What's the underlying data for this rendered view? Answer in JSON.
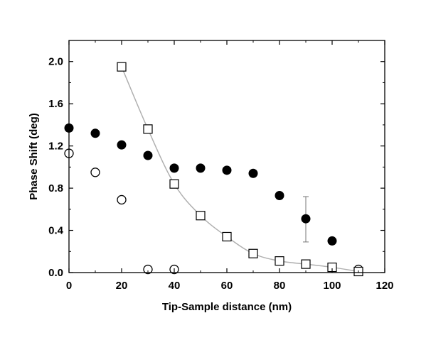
{
  "chart_data": {
    "type": "scatter",
    "title": "",
    "xlabel": "Tip-Sample distance (nm)",
    "ylabel": "Phase Shift (deg)",
    "xlim": [
      0,
      120
    ],
    "ylim": [
      0.0,
      2.2
    ],
    "xticks": [
      0,
      20,
      40,
      60,
      80,
      100,
      120
    ],
    "xtick_labels": [
      "0",
      "20",
      "40",
      "60",
      "80",
      "100",
      "120"
    ],
    "yticks": [
      0.0,
      0.4,
      0.8,
      1.2,
      1.6,
      2.0
    ],
    "ytick_labels": [
      "0.0",
      "0.4",
      "0.8",
      "1.2",
      "1.6",
      "2.0"
    ],
    "grid": false,
    "legend": "none",
    "series": [
      {
        "marker": "filled-circle",
        "color": "#000000",
        "x": [
          0,
          10,
          20,
          30,
          40,
          50,
          60,
          70,
          80,
          90,
          100
        ],
        "y": [
          1.37,
          1.32,
          1.21,
          1.11,
          0.99,
          0.99,
          0.97,
          0.94,
          0.73,
          0.51,
          0.3
        ],
        "error_bars": [
          {
            "x": 90,
            "low": 0.29,
            "high": 0.72
          }
        ]
      },
      {
        "marker": "open-circle",
        "color": "#000000",
        "x": [
          0,
          10,
          20,
          30,
          40,
          110
        ],
        "y": [
          1.13,
          0.95,
          0.69,
          0.03,
          0.03,
          0.03
        ]
      },
      {
        "marker": "open-square",
        "color": "#000000",
        "x": [
          20,
          30,
          40,
          50,
          60,
          70,
          80,
          90,
          100,
          110
        ],
        "y": [
          1.95,
          1.36,
          0.84,
          0.54,
          0.34,
          0.18,
          0.11,
          0.08,
          0.05,
          0.01
        ],
        "fit_line": true,
        "fit_color": "#b0b0b0"
      }
    ]
  }
}
